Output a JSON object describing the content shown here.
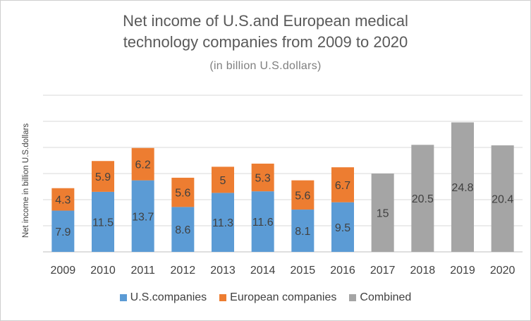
{
  "chart_data": {
    "type": "bar",
    "stacked": true,
    "title": "Net income of U.S.and European medical technology companies from 2009 to 2020",
    "title_lines": [
      "Net income of U.S.and European medical",
      "technology companies from 2009 to 2020"
    ],
    "subtitle": "(in billion U.S.dollars)",
    "xlabel": "",
    "ylabel": "Net income in billion U.S.dollars",
    "ylim": [
      0,
      30
    ],
    "grid": true,
    "legend_position": "bottom",
    "categories": [
      "2009",
      "2010",
      "2011",
      "2012",
      "2013",
      "2014",
      "2015",
      "2016",
      "2017",
      "2018",
      "2019",
      "2020"
    ],
    "series": [
      {
        "name": "U.S.companies",
        "color": "#5b9bd5",
        "values": [
          7.9,
          11.5,
          13.7,
          8.6,
          11.3,
          11.6,
          8.1,
          9.5,
          null,
          null,
          null,
          null
        ]
      },
      {
        "name": "European companies",
        "color": "#ed7d31",
        "values": [
          4.3,
          5.9,
          6.2,
          5.6,
          5,
          5.3,
          5.6,
          6.7,
          null,
          null,
          null,
          null
        ]
      },
      {
        "name": "Combined",
        "color": "#a5a5a5",
        "values": [
          null,
          null,
          null,
          null,
          null,
          null,
          null,
          null,
          15,
          20.5,
          24.8,
          20.4
        ]
      }
    ]
  }
}
